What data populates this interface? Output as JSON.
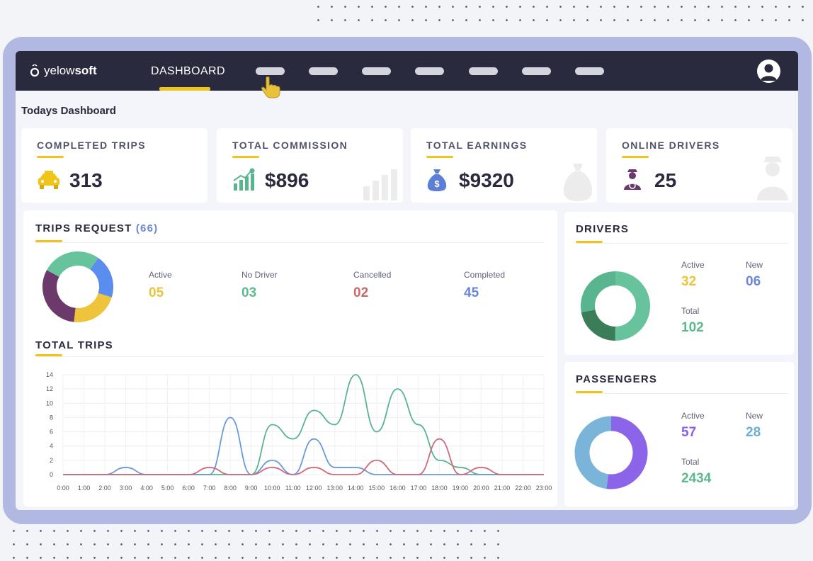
{
  "app": {
    "logo_light": "yelow",
    "logo_bold": "soft"
  },
  "nav": {
    "active_tab": "DASHBOARD"
  },
  "page_title": "Todays Dashboard",
  "stats": [
    {
      "label": "COMPLETED TRIPS",
      "value": "313",
      "icon": "taxi-icon",
      "color": "#f0c419"
    },
    {
      "label": "TOTAL COMMISSION",
      "value": "$896",
      "icon": "growth-chart-icon",
      "color": "#58b58d"
    },
    {
      "label": "TOTAL EARNINGS",
      "value": "$9320",
      "icon": "money-bag-icon",
      "color": "#5b7fd6"
    },
    {
      "label": "ONLINE DRIVERS",
      "value": "25",
      "icon": "driver-icon",
      "color": "#6a3a6e"
    }
  ],
  "trips_request": {
    "title": "TRIPS REQUEST",
    "count": "(66)",
    "metrics": [
      {
        "label": "Active",
        "value": "05",
        "color": "#e9c53a"
      },
      {
        "label": "No Driver",
        "value": "03",
        "color": "#5bb98c"
      },
      {
        "label": "Cancelled",
        "value": "02",
        "color": "#c96a6a"
      },
      {
        "label": "Completed",
        "value": "45",
        "color": "#6a86d8"
      }
    ],
    "donut": [
      {
        "value": 20,
        "color": "#5b8def"
      },
      {
        "value": 22,
        "color": "#f0c43a"
      },
      {
        "value": 31,
        "color": "#6b3a6a"
      },
      {
        "value": 27,
        "color": "#67c39b"
      }
    ]
  },
  "total_trips": {
    "title": "TOTAL TRIPS",
    "chart_data": {
      "type": "line",
      "x": [
        "0:00",
        "1:00",
        "2:00",
        "3:00",
        "4:00",
        "5:00",
        "6:00",
        "7:00",
        "8:00",
        "9:00",
        "10:00",
        "11:00",
        "12:00",
        "13:00",
        "14:00",
        "15:00",
        "16:00",
        "17:00",
        "18:00",
        "19:00",
        "20:00",
        "21:00",
        "22:00",
        "23:00"
      ],
      "ylim": [
        0,
        14
      ],
      "yticks": [
        0,
        2,
        4,
        6,
        8,
        10,
        12,
        14
      ],
      "grid": true,
      "series": [
        {
          "color": "#58b58d",
          "values": [
            0,
            0,
            0,
            0,
            0,
            0,
            0,
            0,
            0,
            0,
            7,
            5,
            9,
            7,
            14,
            6,
            12,
            7,
            2,
            1,
            0,
            0,
            0,
            0
          ]
        },
        {
          "color": "#6a9ad8",
          "values": [
            0,
            0,
            0,
            1,
            0,
            0,
            0,
            0,
            8,
            0,
            2,
            0,
            5,
            1,
            1,
            0,
            0,
            0,
            0,
            0,
            0,
            0,
            0,
            0
          ]
        },
        {
          "color": "#d06a7a",
          "values": [
            0,
            0,
            0,
            0,
            0,
            0,
            0,
            1,
            0,
            0,
            1,
            0,
            1,
            0,
            0,
            2,
            0,
            0,
            5,
            0,
            1,
            0,
            0,
            0
          ]
        }
      ]
    }
  },
  "drivers": {
    "title": "DRIVERS",
    "active_label": "Active",
    "active_value": "32",
    "active_color": "#e9c53a",
    "new_label": "New",
    "new_value": "06",
    "new_color": "#6a86d8",
    "total_label": "Total",
    "total_value": "102",
    "total_color": "#5bb98c",
    "donut": [
      {
        "value": 50,
        "color": "#67c39b"
      },
      {
        "value": 22,
        "color": "#3b7d58"
      },
      {
        "value": 28,
        "color": "#58b58d"
      }
    ]
  },
  "passengers": {
    "title": "PASSENGERS",
    "active_label": "Active",
    "active_value": "57",
    "active_color": "#8a5ee8",
    "new_label": "New",
    "new_value": "28",
    "new_color": "#6aaed8",
    "total_label": "Total",
    "total_value": "2434",
    "total_color": "#5bb98c",
    "donut": [
      {
        "value": 52,
        "color": "#8b64ea"
      },
      {
        "value": 48,
        "color": "#7ab5d9"
      }
    ]
  }
}
